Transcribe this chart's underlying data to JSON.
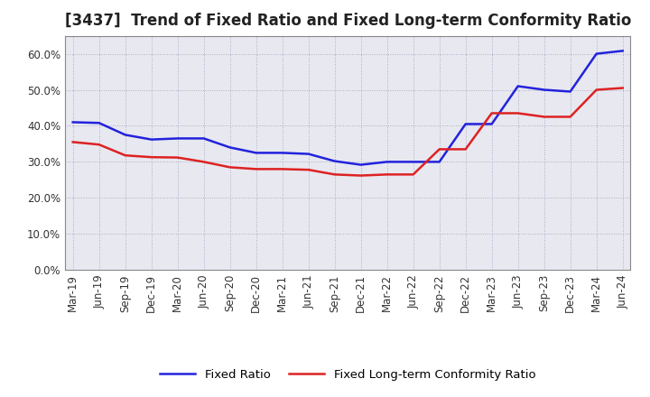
{
  "title": "[3437]  Trend of Fixed Ratio and Fixed Long-term Conformity Ratio",
  "x_labels": [
    "Mar-19",
    "Jun-19",
    "Sep-19",
    "Dec-19",
    "Mar-20",
    "Jun-20",
    "Sep-20",
    "Dec-20",
    "Mar-21",
    "Jun-21",
    "Sep-21",
    "Dec-21",
    "Mar-22",
    "Jun-22",
    "Sep-22",
    "Dec-22",
    "Mar-23",
    "Jun-23",
    "Sep-23",
    "Dec-23",
    "Mar-24",
    "Jun-24"
  ],
  "fixed_ratio": [
    0.41,
    0.408,
    0.375,
    0.362,
    0.365,
    0.365,
    0.34,
    0.325,
    0.325,
    0.322,
    0.302,
    0.292,
    0.3,
    0.3,
    0.3,
    0.405,
    0.405,
    0.51,
    0.5,
    0.495,
    0.6,
    0.608
  ],
  "fixed_lt_ratio": [
    0.355,
    0.348,
    0.318,
    0.313,
    0.312,
    0.3,
    0.285,
    0.28,
    0.28,
    0.278,
    0.265,
    0.262,
    0.265,
    0.265,
    0.335,
    0.335,
    0.435,
    0.435,
    0.425,
    0.425,
    0.5,
    0.505
  ],
  "ylim": [
    0.0,
    0.65
  ],
  "y_ticks": [
    0.0,
    0.1,
    0.2,
    0.3,
    0.4,
    0.5,
    0.6
  ],
  "line_color_blue": "#2222DD",
  "line_color_red": "#DD2222",
  "background_color": "#FFFFFF",
  "plot_bg_color": "#E8E8F0",
  "grid_color": "#9999BB",
  "border_color": "#888888",
  "legend_blue": "Fixed Ratio",
  "legend_red": "Fixed Long-term Conformity Ratio",
  "title_fontsize": 12,
  "tick_fontsize": 8.5,
  "legend_fontsize": 9.5
}
